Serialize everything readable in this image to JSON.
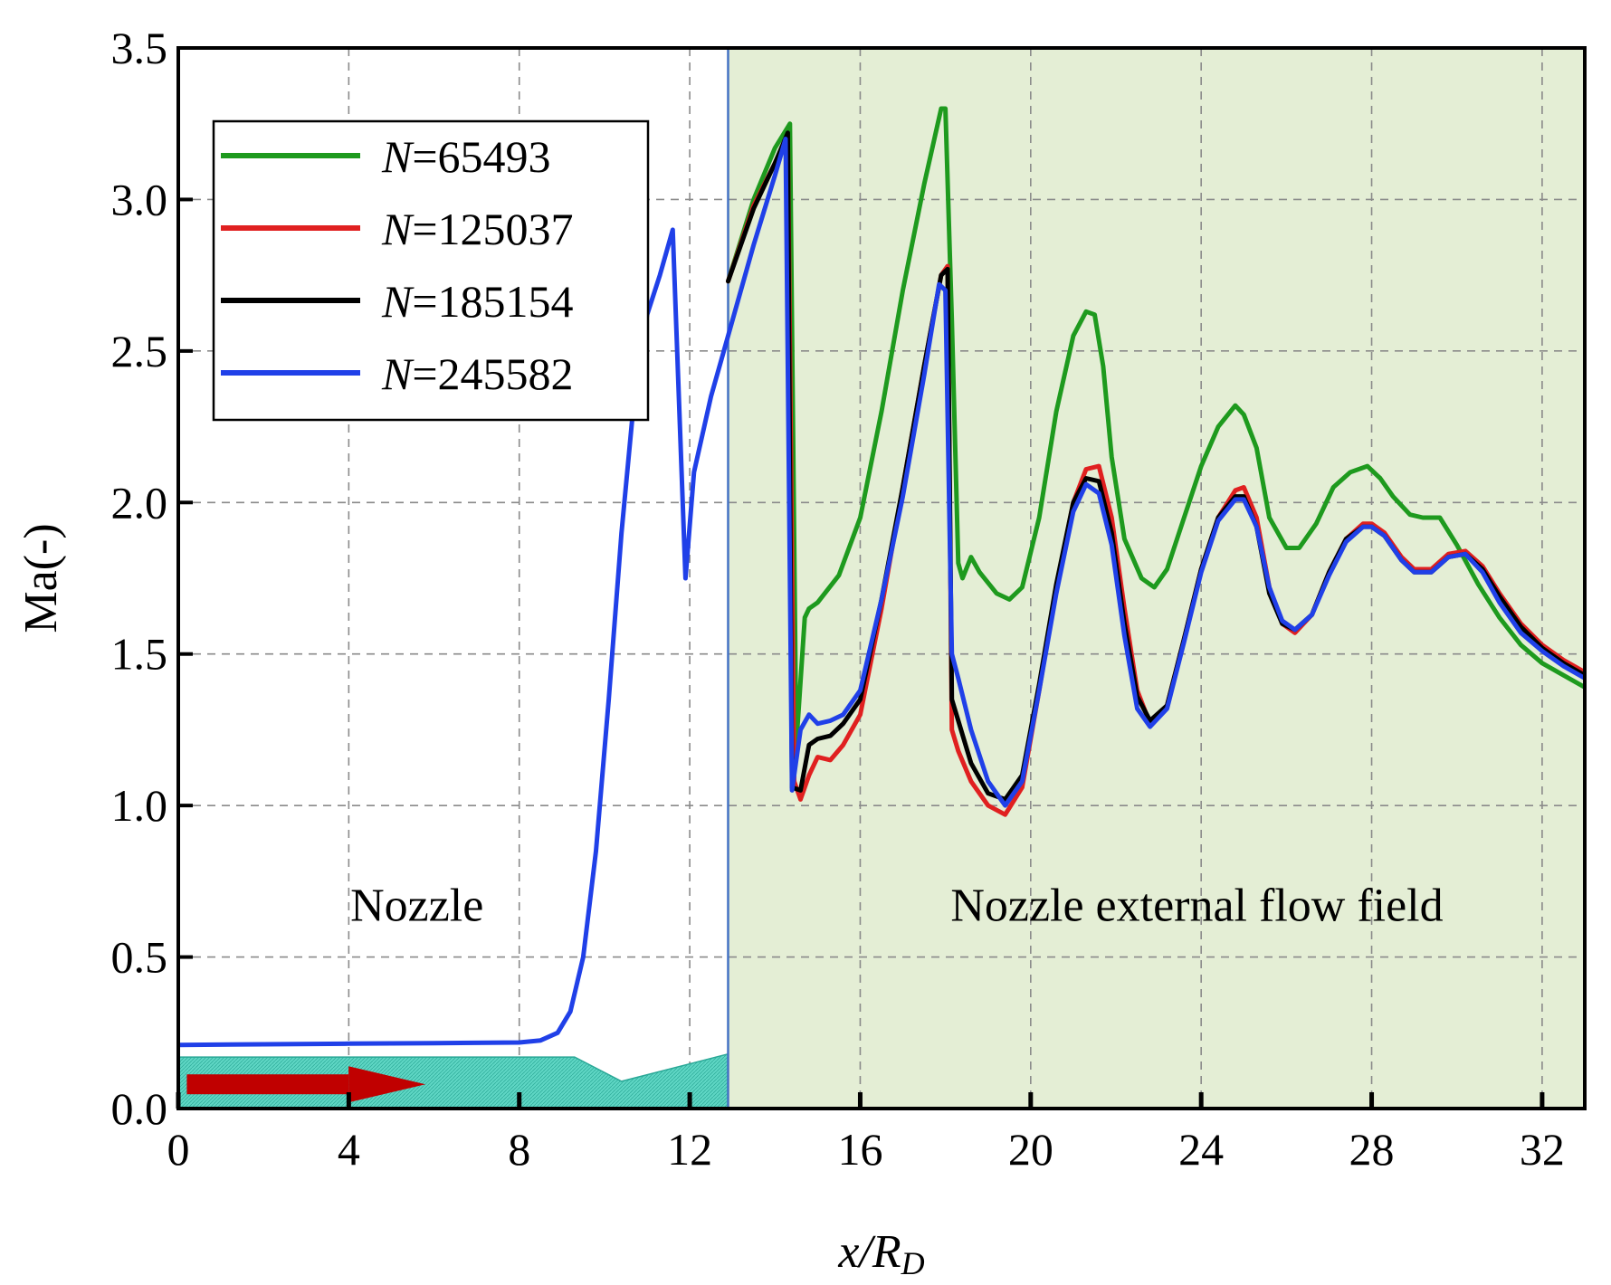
{
  "chart_data": {
    "type": "line",
    "xlabel": "x/RD",
    "xlabel_main": "x/R",
    "xlabel_sub": "D",
    "ylabel": "Ma(-)",
    "xlim": [
      0,
      33
    ],
    "ylim": [
      0,
      3.5
    ],
    "xticks": [
      0,
      4,
      8,
      12,
      16,
      20,
      24,
      28,
      32
    ],
    "yticks": [
      0.0,
      0.5,
      1.0,
      1.5,
      2.0,
      2.5,
      3.0,
      3.5
    ],
    "ytick_labels": [
      "0.0",
      "0.5",
      "1.0",
      "1.5",
      "2.0",
      "2.5",
      "3.0",
      "3.5"
    ],
    "grid": true,
    "legend_position": "top-left",
    "nozzle_exit_x": 12.9,
    "regions": [
      {
        "label": "Nozzle",
        "x": 5.6,
        "y": 0.62
      },
      {
        "label": "Nozzle external flow field",
        "x": 23.9,
        "y": 0.62
      }
    ],
    "shaded_region": {
      "from": 12.9,
      "to": 33,
      "color": "#e4eed5"
    },
    "boundary_color": "#4472c4",
    "nozzle_shape": {
      "color": "#3cc8b4",
      "outline": [
        [
          0,
          0.17
        ],
        [
          9.3,
          0.17
        ],
        [
          10.4,
          0.09
        ],
        [
          12.9,
          0.18
        ],
        [
          12.9,
          0
        ],
        [
          0,
          0
        ]
      ]
    },
    "flow_arrow": {
      "from": 0.2,
      "to": 5.8,
      "y": 0.08,
      "color": "#c00000"
    },
    "series": [
      {
        "name": "N=65493",
        "name_italic": "N",
        "name_value": "=65493",
        "color": "#1e9a1e",
        "x": [
          12.9,
          13.5,
          14.0,
          14.35,
          14.5,
          14.7,
          14.8,
          15.0,
          15.5,
          16.0,
          16.5,
          17.0,
          17.5,
          17.9,
          18.0,
          18.15,
          18.3,
          18.4,
          18.6,
          18.8,
          19.2,
          19.5,
          19.8,
          20.2,
          20.6,
          21.0,
          21.3,
          21.5,
          21.7,
          21.9,
          22.2,
          22.6,
          22.9,
          23.2,
          23.6,
          24.0,
          24.4,
          24.8,
          25.0,
          25.3,
          25.6,
          26.0,
          26.3,
          26.7,
          27.1,
          27.5,
          27.9,
          28.2,
          28.5,
          28.9,
          29.2,
          29.6,
          30.0,
          30.5,
          31.0,
          31.5,
          32.0,
          32.5,
          33.0
        ],
        "y": [
          2.73,
          3.0,
          3.17,
          3.25,
          1.2,
          1.62,
          1.65,
          1.67,
          1.76,
          1.95,
          2.3,
          2.7,
          3.05,
          3.3,
          3.3,
          2.6,
          1.8,
          1.75,
          1.82,
          1.77,
          1.7,
          1.68,
          1.72,
          1.95,
          2.3,
          2.55,
          2.63,
          2.62,
          2.45,
          2.15,
          1.88,
          1.75,
          1.72,
          1.78,
          1.95,
          2.12,
          2.25,
          2.32,
          2.29,
          2.18,
          1.95,
          1.85,
          1.85,
          1.93,
          2.05,
          2.1,
          2.12,
          2.08,
          2.02,
          1.96,
          1.95,
          1.95,
          1.86,
          1.73,
          1.62,
          1.53,
          1.47,
          1.43,
          1.39
        ]
      },
      {
        "name": "N=125037",
        "name_italic": "N",
        "name_value": "=125037",
        "color": "#e02020",
        "x": [
          12.9,
          13.5,
          14.0,
          14.3,
          14.45,
          14.6,
          14.8,
          15.0,
          15.3,
          15.6,
          16.0,
          16.5,
          17.0,
          17.5,
          17.9,
          18.05,
          18.15,
          18.3,
          18.6,
          19.0,
          19.4,
          19.8,
          20.2,
          20.6,
          21.0,
          21.3,
          21.6,
          21.9,
          22.2,
          22.5,
          22.8,
          23.2,
          23.6,
          24.0,
          24.4,
          24.8,
          25.0,
          25.3,
          25.6,
          25.9,
          26.2,
          26.6,
          27.0,
          27.4,
          27.8,
          28.0,
          28.3,
          28.7,
          29.0,
          29.4,
          29.8,
          30.2,
          30.6,
          31.0,
          31.5,
          32.0,
          32.5,
          33.0
        ],
        "y": [
          2.73,
          2.98,
          3.12,
          3.21,
          1.08,
          1.02,
          1.1,
          1.16,
          1.15,
          1.2,
          1.3,
          1.65,
          2.05,
          2.45,
          2.75,
          2.78,
          1.25,
          1.18,
          1.08,
          1.0,
          0.97,
          1.06,
          1.38,
          1.72,
          2.0,
          2.11,
          2.12,
          1.95,
          1.65,
          1.38,
          1.27,
          1.33,
          1.55,
          1.78,
          1.95,
          2.04,
          2.05,
          1.95,
          1.72,
          1.6,
          1.57,
          1.63,
          1.77,
          1.88,
          1.93,
          1.93,
          1.9,
          1.82,
          1.78,
          1.78,
          1.83,
          1.84,
          1.79,
          1.7,
          1.6,
          1.53,
          1.48,
          1.44
        ]
      },
      {
        "name": "N=185154",
        "name_italic": "N",
        "name_value": "=185154",
        "color": "#000000",
        "x": [
          12.9,
          13.5,
          14.0,
          14.3,
          14.4,
          14.6,
          14.8,
          15.0,
          15.3,
          15.6,
          16.0,
          16.5,
          17.0,
          17.5,
          17.9,
          18.05,
          18.15,
          18.3,
          18.6,
          19.0,
          19.4,
          19.8,
          20.2,
          20.6,
          21.0,
          21.3,
          21.6,
          21.9,
          22.2,
          22.5,
          22.8,
          23.2,
          23.6,
          24.0,
          24.4,
          24.8,
          25.0,
          25.3,
          25.6,
          25.9,
          26.2,
          26.6,
          27.0,
          27.4,
          27.8,
          28.0,
          28.3,
          28.7,
          29.0,
          29.4,
          29.8,
          30.2,
          30.6,
          31.0,
          31.5,
          32.0,
          32.5,
          33.0
        ],
        "y": [
          2.73,
          2.97,
          3.12,
          3.22,
          1.06,
          1.05,
          1.2,
          1.22,
          1.23,
          1.27,
          1.35,
          1.68,
          2.05,
          2.45,
          2.75,
          2.77,
          1.35,
          1.28,
          1.14,
          1.04,
          1.02,
          1.1,
          1.4,
          1.73,
          2.0,
          2.08,
          2.07,
          1.9,
          1.6,
          1.36,
          1.28,
          1.33,
          1.55,
          1.78,
          1.95,
          2.02,
          2.02,
          1.92,
          1.7,
          1.6,
          1.58,
          1.63,
          1.77,
          1.88,
          1.92,
          1.92,
          1.89,
          1.81,
          1.77,
          1.77,
          1.82,
          1.83,
          1.78,
          1.69,
          1.59,
          1.52,
          1.47,
          1.43
        ]
      },
      {
        "name": "N=245582",
        "name_italic": "N",
        "name_value": "=245582",
        "color": "#2040e8",
        "x": [
          0,
          2,
          4,
          6,
          8,
          8.5,
          8.9,
          9.2,
          9.5,
          9.8,
          10.1,
          10.4,
          10.7,
          11.0,
          11.3,
          11.6,
          11.9,
          12.1,
          12.5,
          12.9,
          13.5,
          14.0,
          14.25,
          14.4,
          14.6,
          14.8,
          15.0,
          15.3,
          15.6,
          16.0,
          16.5,
          17.0,
          17.5,
          17.85,
          18.0,
          18.15,
          18.3,
          18.6,
          19.0,
          19.4,
          19.8,
          20.2,
          20.6,
          21.0,
          21.3,
          21.6,
          21.9,
          22.2,
          22.5,
          22.8,
          23.2,
          23.6,
          24.0,
          24.4,
          24.8,
          25.0,
          25.3,
          25.6,
          25.9,
          26.2,
          26.6,
          27.0,
          27.4,
          27.8,
          28.0,
          28.3,
          28.7,
          29.0,
          29.4,
          29.8,
          30.2,
          30.6,
          31.0,
          31.5,
          32.0,
          32.5,
          33.0
        ],
        "y": [
          0.21,
          0.212,
          0.214,
          0.216,
          0.218,
          0.225,
          0.25,
          0.32,
          0.5,
          0.85,
          1.35,
          1.9,
          2.35,
          2.62,
          2.75,
          2.9,
          1.75,
          2.1,
          2.35,
          2.55,
          2.85,
          3.08,
          3.2,
          1.05,
          1.25,
          1.3,
          1.27,
          1.28,
          1.3,
          1.38,
          1.68,
          2.02,
          2.42,
          2.72,
          2.7,
          1.5,
          1.42,
          1.25,
          1.08,
          1.0,
          1.08,
          1.38,
          1.7,
          1.97,
          2.06,
          2.03,
          1.86,
          1.56,
          1.32,
          1.26,
          1.32,
          1.54,
          1.77,
          1.94,
          2.01,
          2.01,
          1.92,
          1.72,
          1.61,
          1.58,
          1.63,
          1.76,
          1.87,
          1.92,
          1.92,
          1.89,
          1.81,
          1.77,
          1.77,
          1.82,
          1.83,
          1.77,
          1.67,
          1.57,
          1.51,
          1.46,
          1.42
        ]
      }
    ]
  }
}
